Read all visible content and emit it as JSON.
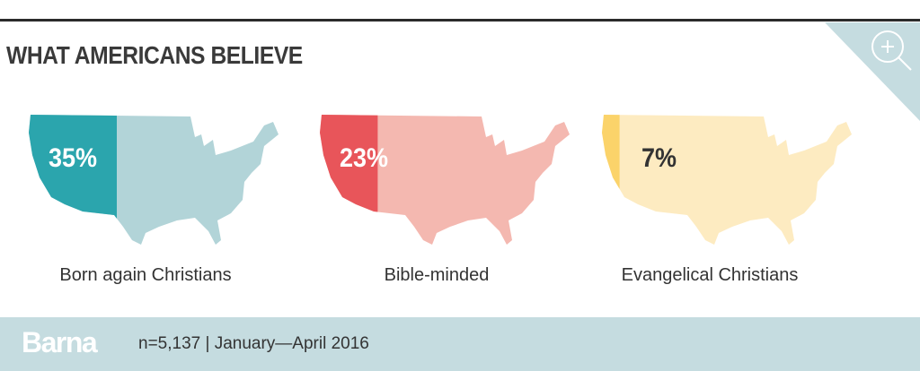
{
  "title": "WHAT AMERICANS BELIEVE",
  "chart_data": {
    "type": "pie",
    "title": "WHAT AMERICANS BELIEVE",
    "categories": [
      "Born again Christians",
      "Bible-minded",
      "Evangelical Christians"
    ],
    "values": [
      35,
      23,
      7
    ],
    "value_labels": [
      "35%",
      "23%",
      "7%"
    ],
    "unit": "%",
    "colors": [
      {
        "fill": "#2ba5ad",
        "rest": "#b2d4d8",
        "text": "#ffffff"
      },
      {
        "fill": "#e8555a",
        "rest": "#f4b8b0",
        "text": "#ffffff"
      },
      {
        "fill": "#fbd36a",
        "rest": "#fdebc1",
        "text": "#333333"
      }
    ]
  },
  "footer": {
    "logo": "Barna",
    "meta": "n=5,137  |  January—April 2016"
  },
  "icons": {
    "zoom": "zoom-in-icon"
  }
}
